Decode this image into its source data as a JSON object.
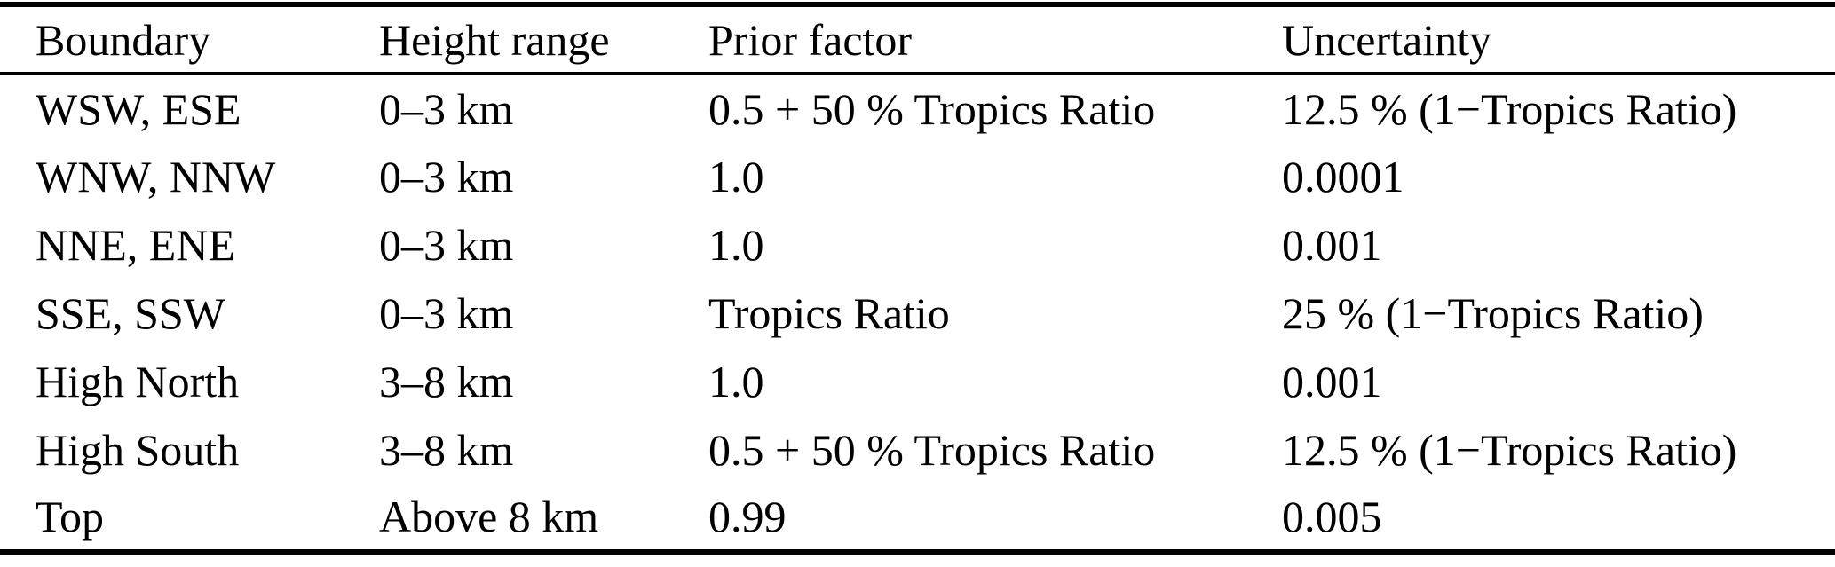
{
  "table": {
    "headers": [
      "Boundary",
      "Height range",
      "Prior factor",
      "Uncertainty"
    ],
    "rows": [
      [
        "WSW, ESE",
        "0–3 km",
        "0.5 + 50 % Tropics Ratio",
        "12.5 % (1−Tropics Ratio)"
      ],
      [
        "WNW, NNW",
        "0–3 km",
        "1.0",
        "0.0001"
      ],
      [
        "NNE, ENE",
        "0–3 km",
        "1.0",
        "0.001"
      ],
      [
        "SSE, SSW",
        "0–3 km",
        "Tropics Ratio",
        "25 % (1−Tropics Ratio)"
      ],
      [
        "High North",
        "3–8 km",
        "1.0",
        "0.001"
      ],
      [
        "High South",
        "3–8 km",
        "0.5 + 50 % Tropics Ratio",
        "12.5 % (1−Tropics Ratio)"
      ],
      [
        "Top",
        "Above 8 km",
        "0.99",
        "0.005"
      ]
    ],
    "colors": {
      "text": "#000000",
      "background": "#ffffff",
      "rule": "#000000"
    }
  }
}
